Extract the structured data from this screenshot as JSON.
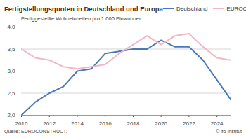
{
  "chart_data": {
    "type": "line",
    "title": "Fertigstellungsquoten in Deutschland und Europa",
    "y_label": "Fertiggestellte Wohneinheiten pro 1 000 Einwohner",
    "source": "Quelle: EUROCONSTRUCT.",
    "credit": "© ifo Institut",
    "x": [
      2010,
      2011,
      2012,
      2013,
      2014,
      2015,
      2016,
      2017,
      2018,
      2019,
      2020,
      2021,
      2022,
      2023,
      2024,
      2025
    ],
    "series": [
      {
        "name": "Deutschland",
        "color": "#4a78b8",
        "values": [
          2.0,
          2.3,
          2.5,
          2.65,
          3.0,
          3.05,
          3.4,
          3.45,
          3.5,
          3.5,
          3.7,
          3.55,
          3.55,
          3.25,
          2.8,
          2.35
        ]
      },
      {
        "name": "EUROCONSTRUCT-Gebiet",
        "color": "#f2b6c4",
        "values": [
          3.5,
          3.3,
          3.25,
          3.1,
          3.05,
          3.1,
          3.15,
          3.4,
          3.6,
          3.8,
          3.6,
          3.8,
          3.85,
          3.55,
          3.3,
          3.25
        ]
      }
    ],
    "xlim": [
      2010,
      2025
    ],
    "xticks": [
      2010,
      2012,
      2014,
      2016,
      2018,
      2020,
      2022,
      2024
    ],
    "ylim": [
      2,
      4
    ],
    "yticks": [
      {
        "value": 2,
        "label": "2,0"
      },
      {
        "value": 2.5,
        "label": "2,5"
      },
      {
        "value": 3,
        "label": "3,0"
      },
      {
        "value": 3.5,
        "label": "3,5"
      },
      {
        "value": 4,
        "label": "4,0"
      }
    ],
    "grid": true,
    "legend": "top-right"
  }
}
